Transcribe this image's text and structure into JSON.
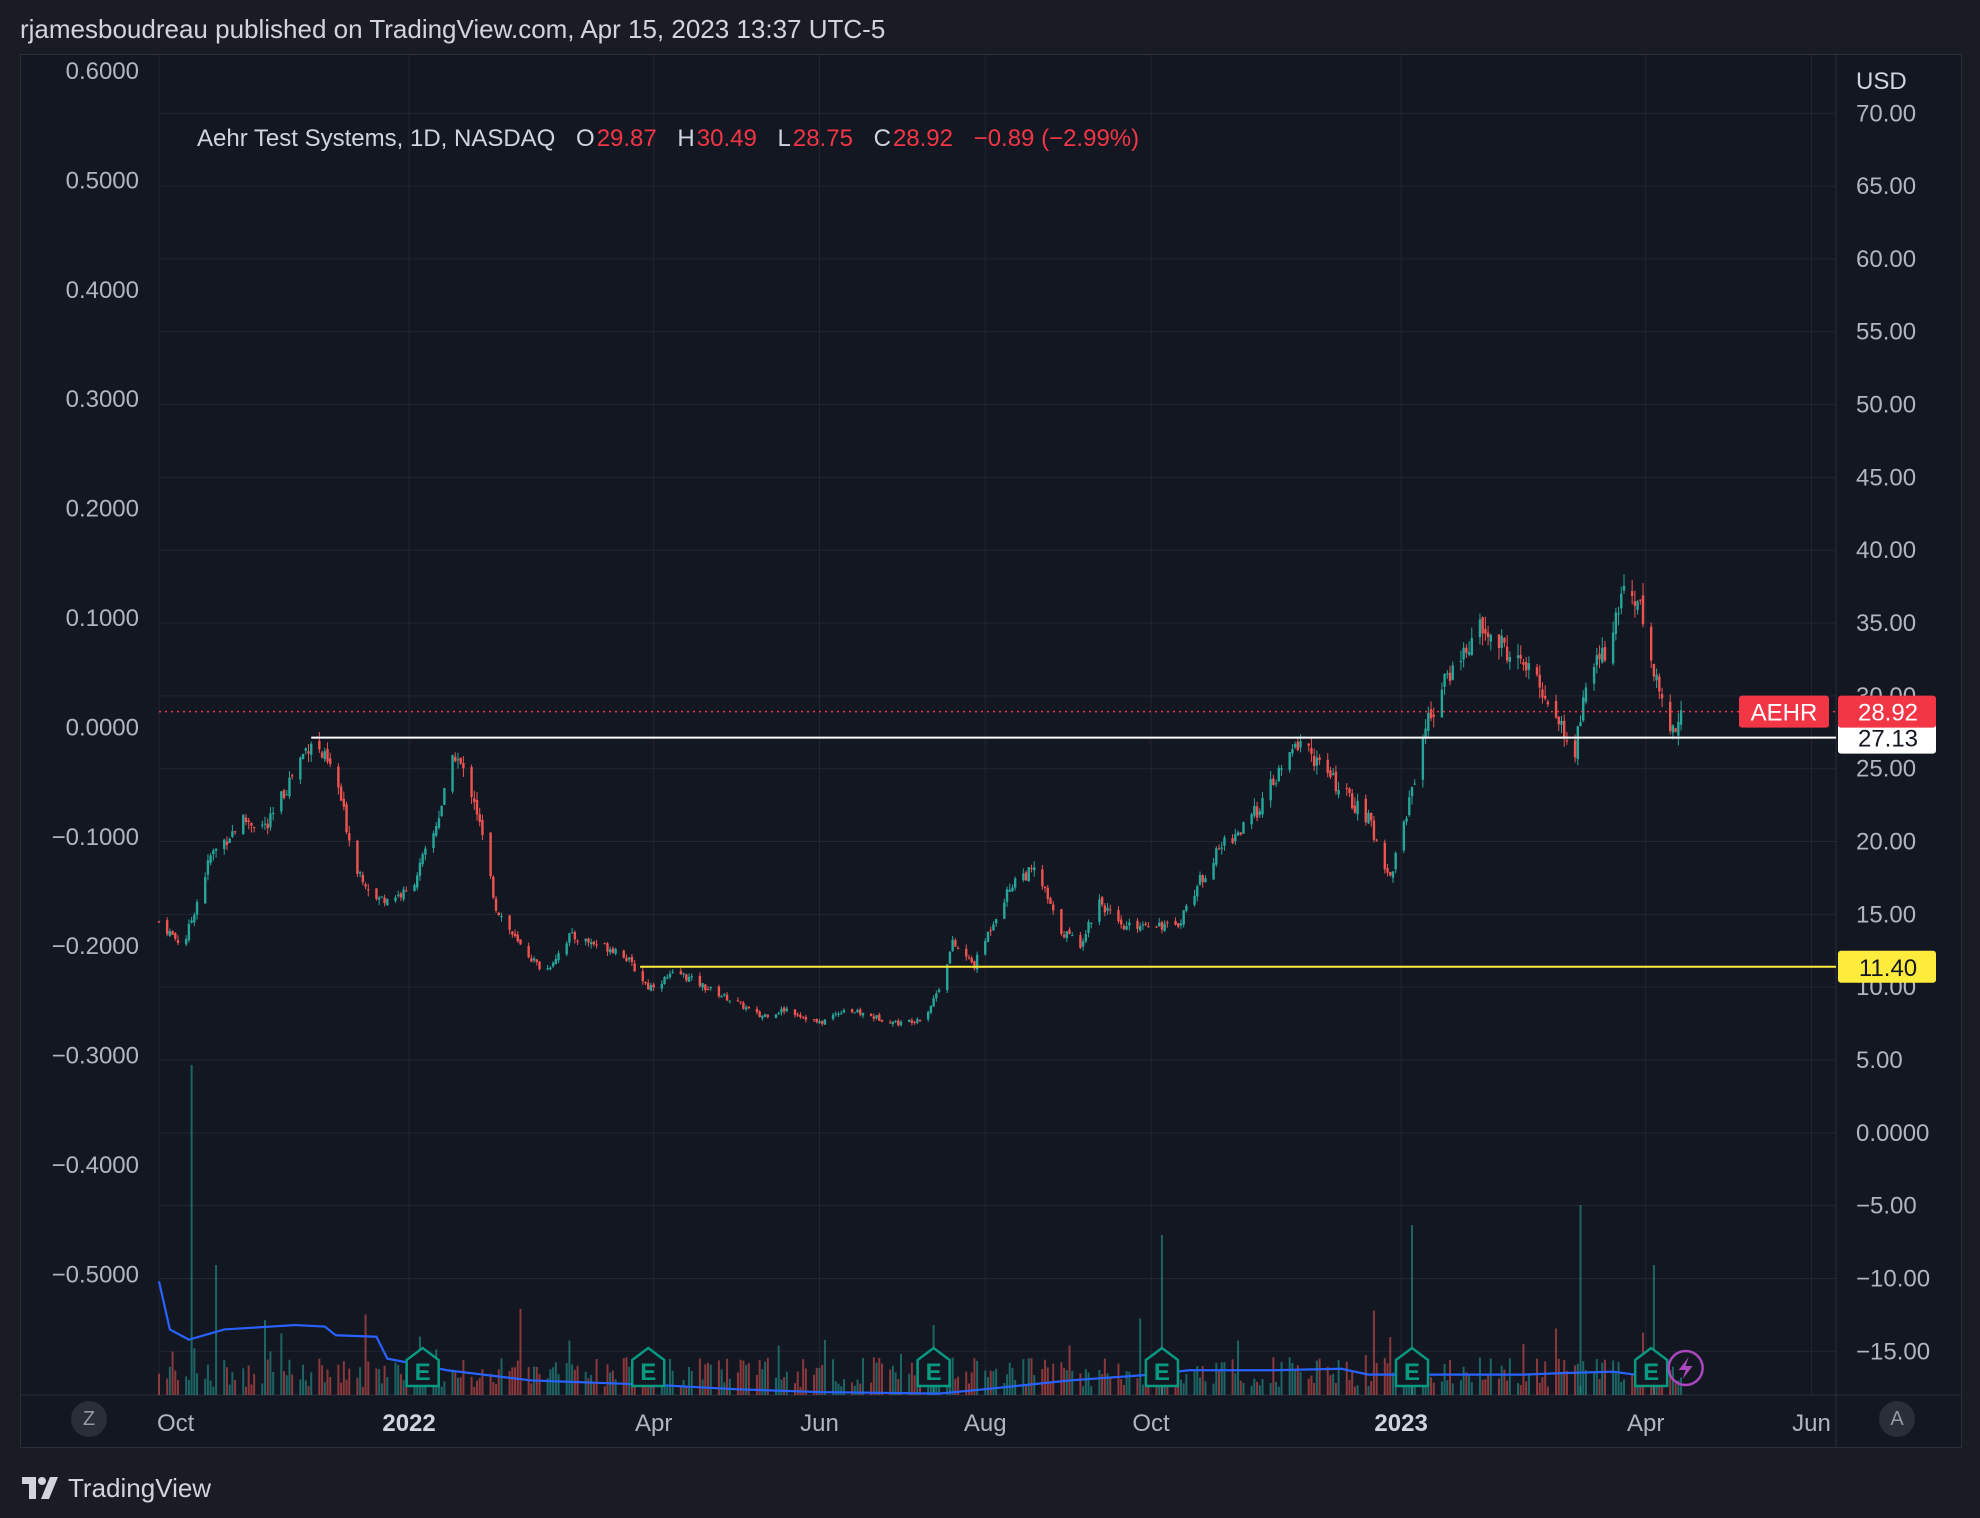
{
  "header": {
    "text": "rjamesboudreau published on TradingView.com, Apr 15, 2023 13:37 UTC-5"
  },
  "legend": {
    "name": "Aehr Test Systems, 1D, NASDAQ",
    "open_label": "O",
    "open": "29.87",
    "high_label": "H",
    "high": "30.49",
    "low_label": "L",
    "low": "28.75",
    "close_label": "C",
    "close": "28.92",
    "change": "−0.89 (−2.99%)"
  },
  "footer": {
    "brand": "TradingView"
  },
  "controls": {
    "left": "Z",
    "right": "A"
  },
  "colors": {
    "up": "#26a69a",
    "down": "#ef5350",
    "background": "#131722",
    "grid": "#232632",
    "support": "#ffffff",
    "yellow_line": "#ffeb3b",
    "price_line": "#f23645",
    "blue_line": "#2962ff",
    "earnings": "#089981",
    "bolt": "#ab47bc"
  },
  "chart_data": {
    "type": "candlestick",
    "currency": "USD",
    "right_axis": {
      "unit": "USD",
      "ticks": [
        "70.00",
        "65.00",
        "60.00",
        "55.00",
        "50.00",
        "45.00",
        "40.00",
        "35.00",
        "30.00",
        "25.00",
        "20.00",
        "15.00",
        "10.00",
        "5.00",
        "0.0000",
        "−5.00",
        "−10.00",
        "−15.00"
      ],
      "range": [
        -18.0,
        74.0
      ]
    },
    "left_axis": {
      "ticks": [
        "0.6000",
        "0.5000",
        "0.4000",
        "0.3000",
        "0.2000",
        "0.1000",
        "0.0000",
        "−0.1000",
        "−0.2000",
        "−0.3000",
        "−0.4000",
        "−0.5000"
      ]
    },
    "x_axis": {
      "ticks": [
        {
          "label": "Oct",
          "date": "2021-10-01",
          "bold": false
        },
        {
          "label": "2022",
          "date": "2022-01-01",
          "bold": true
        },
        {
          "label": "Apr",
          "date": "2022-04-01",
          "bold": false
        },
        {
          "label": "Jun",
          "date": "2022-06-01",
          "bold": false
        },
        {
          "label": "Aug",
          "date": "2022-08-01",
          "bold": false
        },
        {
          "label": "Oct",
          "date": "2022-10-01",
          "bold": false
        },
        {
          "label": "2023",
          "date": "2023-01-01",
          "bold": true
        },
        {
          "label": "Apr",
          "date": "2023-04-01",
          "bold": false
        },
        {
          "label": "Jun",
          "date": "2023-06-01",
          "bold": false
        }
      ],
      "range": [
        "2021-10-01",
        "2023-06-10"
      ]
    },
    "series": [
      {
        "type": "close_path",
        "points": [
          [
            "2021-10-01",
            14.5
          ],
          [
            "2021-10-10",
            12.8
          ],
          [
            "2021-10-20",
            19.0
          ],
          [
            "2021-11-01",
            21.5
          ],
          [
            "2021-11-10",
            21.0
          ],
          [
            "2021-11-20",
            25.0
          ],
          [
            "2021-11-26",
            27.0
          ],
          [
            "2021-12-05",
            24.5
          ],
          [
            "2021-12-12",
            18.5
          ],
          [
            "2021-12-20",
            16.0
          ],
          [
            "2022-01-01",
            16.5
          ],
          [
            "2022-01-10",
            20.5
          ],
          [
            "2022-01-18",
            26.0
          ],
          [
            "2022-01-25",
            23.0
          ],
          [
            "2022-02-02",
            15.5
          ],
          [
            "2022-02-10",
            13.0
          ],
          [
            "2022-02-20",
            11.0
          ],
          [
            "2022-03-01",
            13.5
          ],
          [
            "2022-03-10",
            13.0
          ],
          [
            "2022-03-20",
            12.5
          ],
          [
            "2022-03-30",
            10.0
          ],
          [
            "2022-04-10",
            11.0
          ],
          [
            "2022-04-20",
            10.0
          ],
          [
            "2022-05-01",
            9.0
          ],
          [
            "2022-05-10",
            8.0
          ],
          [
            "2022-05-20",
            8.5
          ],
          [
            "2022-06-01",
            7.5
          ],
          [
            "2022-06-10",
            8.5
          ],
          [
            "2022-06-20",
            8.0
          ],
          [
            "2022-07-01",
            7.5
          ],
          [
            "2022-07-10",
            8.0
          ],
          [
            "2022-07-15",
            10.0
          ],
          [
            "2022-07-20",
            13.0
          ],
          [
            "2022-07-28",
            11.5
          ],
          [
            "2022-08-05",
            15.0
          ],
          [
            "2022-08-12",
            17.5
          ],
          [
            "2022-08-20",
            18.0
          ],
          [
            "2022-08-28",
            14.0
          ],
          [
            "2022-09-05",
            13.0
          ],
          [
            "2022-09-12",
            16.0
          ],
          [
            "2022-09-20",
            14.0
          ],
          [
            "2022-10-01",
            14.5
          ],
          [
            "2022-10-10",
            14.0
          ],
          [
            "2022-10-18",
            17.0
          ],
          [
            "2022-10-28",
            20.0
          ],
          [
            "2022-11-05",
            21.0
          ],
          [
            "2022-11-15",
            24.0
          ],
          [
            "2022-11-25",
            27.0
          ],
          [
            "2022-12-03",
            25.0
          ],
          [
            "2022-12-10",
            23.5
          ],
          [
            "2022-12-20",
            21.5
          ],
          [
            "2022-12-28",
            17.5
          ],
          [
            "2023-01-03",
            22.0
          ],
          [
            "2023-01-10",
            28.0
          ],
          [
            "2023-01-20",
            32.0
          ],
          [
            "2023-01-30",
            34.5
          ],
          [
            "2023-02-10",
            33.0
          ],
          [
            "2023-02-20",
            31.0
          ],
          [
            "2023-03-01",
            28.0
          ],
          [
            "2023-03-05",
            25.0
          ],
          [
            "2023-03-10",
            31.0
          ],
          [
            "2023-03-20",
            34.0
          ],
          [
            "2023-03-25",
            38.5
          ],
          [
            "2023-03-30",
            36.0
          ],
          [
            "2023-04-05",
            31.0
          ],
          [
            "2023-04-10",
            27.5
          ],
          [
            "2023-04-14",
            28.92
          ]
        ]
      },
      {
        "type": "hline",
        "value": 27.13,
        "label": "27.13",
        "from": "2021-11-26"
      },
      {
        "type": "hline",
        "value": 11.4,
        "label": "11.40",
        "from": "2022-03-27"
      },
      {
        "type": "last_price",
        "value": 28.92,
        "label": "28.92",
        "ticker": "AEHR"
      },
      {
        "type": "moving_average_line",
        "points": [
          [
            "2021-10-01",
            -10.2
          ],
          [
            "2021-10-05",
            -13.5
          ],
          [
            "2021-10-12",
            -14.2
          ],
          [
            "2021-10-25",
            -13.5
          ],
          [
            "2021-11-20",
            -13.2
          ],
          [
            "2021-12-01",
            -13.3
          ],
          [
            "2021-12-05",
            -13.9
          ],
          [
            "2021-12-20",
            -14.0
          ],
          [
            "2021-12-24",
            -15.5
          ],
          [
            "2022-01-15",
            -16.3
          ],
          [
            "2022-02-15",
            -17.0
          ],
          [
            "2022-04-01",
            -17.3
          ],
          [
            "2022-05-01",
            -17.6
          ],
          [
            "2022-06-01",
            -17.8
          ],
          [
            "2022-07-15",
            -17.9
          ],
          [
            "2022-08-01",
            -17.6
          ],
          [
            "2022-09-01",
            -17.0
          ],
          [
            "2022-10-01",
            -16.6
          ],
          [
            "2022-10-15",
            -16.3
          ],
          [
            "2022-11-15",
            -16.3
          ],
          [
            "2022-12-10",
            -16.2
          ],
          [
            "2022-12-20",
            -16.6
          ],
          [
            "2023-01-15",
            -16.6
          ],
          [
            "2023-02-15",
            -16.6
          ],
          [
            "2023-03-01",
            -16.5
          ],
          [
            "2023-03-20",
            -16.4
          ],
          [
            "2023-04-01",
            -16.7
          ]
        ]
      }
    ],
    "earnings_events": [
      "2022-01-06",
      "2022-03-30",
      "2022-07-13",
      "2022-10-05",
      "2023-01-05",
      "2023-04-03"
    ]
  }
}
